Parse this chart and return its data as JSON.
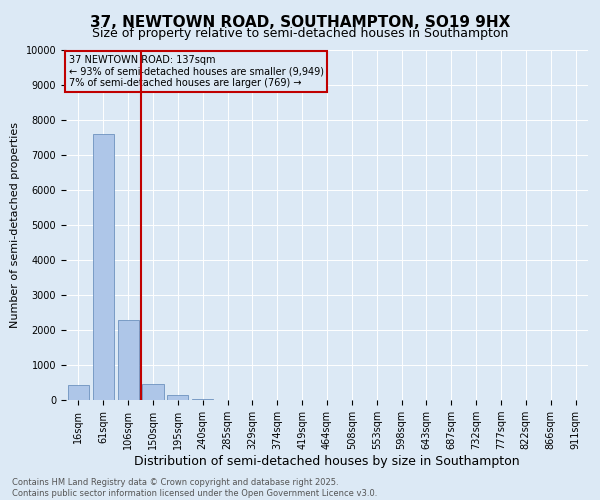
{
  "title_line1": "37, NEWTOWN ROAD, SOUTHAMPTON, SO19 9HX",
  "title_line2": "Size of property relative to semi-detached houses in Southampton",
  "xlabel": "Distribution of semi-detached houses by size in Southampton",
  "ylabel": "Number of semi-detached properties",
  "categories": [
    "16sqm",
    "61sqm",
    "106sqm",
    "150sqm",
    "195sqm",
    "240sqm",
    "285sqm",
    "329sqm",
    "374sqm",
    "419sqm",
    "464sqm",
    "508sqm",
    "553sqm",
    "598sqm",
    "643sqm",
    "687sqm",
    "732sqm",
    "777sqm",
    "822sqm",
    "866sqm",
    "911sqm"
  ],
  "values": [
    430,
    7600,
    2280,
    470,
    130,
    20,
    10,
    5,
    2,
    1,
    1,
    1,
    1,
    1,
    1,
    1,
    1,
    1,
    1,
    1,
    1
  ],
  "bar_color": "#aec6e8",
  "bar_edge_color": "#5c85b5",
  "highlight_bar_index": 2,
  "highlight_color": "#c00000",
  "annotation_title": "37 NEWTOWN ROAD: 137sqm",
  "annotation_line1": "← 93% of semi-detached houses are smaller (9,949)",
  "annotation_line2": "7% of semi-detached houses are larger (769) →",
  "annotation_box_color": "#c00000",
  "ylim": [
    0,
    10000
  ],
  "yticks": [
    0,
    1000,
    2000,
    3000,
    4000,
    5000,
    6000,
    7000,
    8000,
    9000,
    10000
  ],
  "background_color": "#dce9f5",
  "grid_color": "#ffffff",
  "footer_line1": "Contains HM Land Registry data © Crown copyright and database right 2025.",
  "footer_line2": "Contains public sector information licensed under the Open Government Licence v3.0.",
  "title_fontsize": 11,
  "subtitle_fontsize": 9,
  "tick_fontsize": 7,
  "ylabel_fontsize": 8,
  "xlabel_fontsize": 9,
  "annotation_fontsize": 7,
  "footer_fontsize": 6
}
